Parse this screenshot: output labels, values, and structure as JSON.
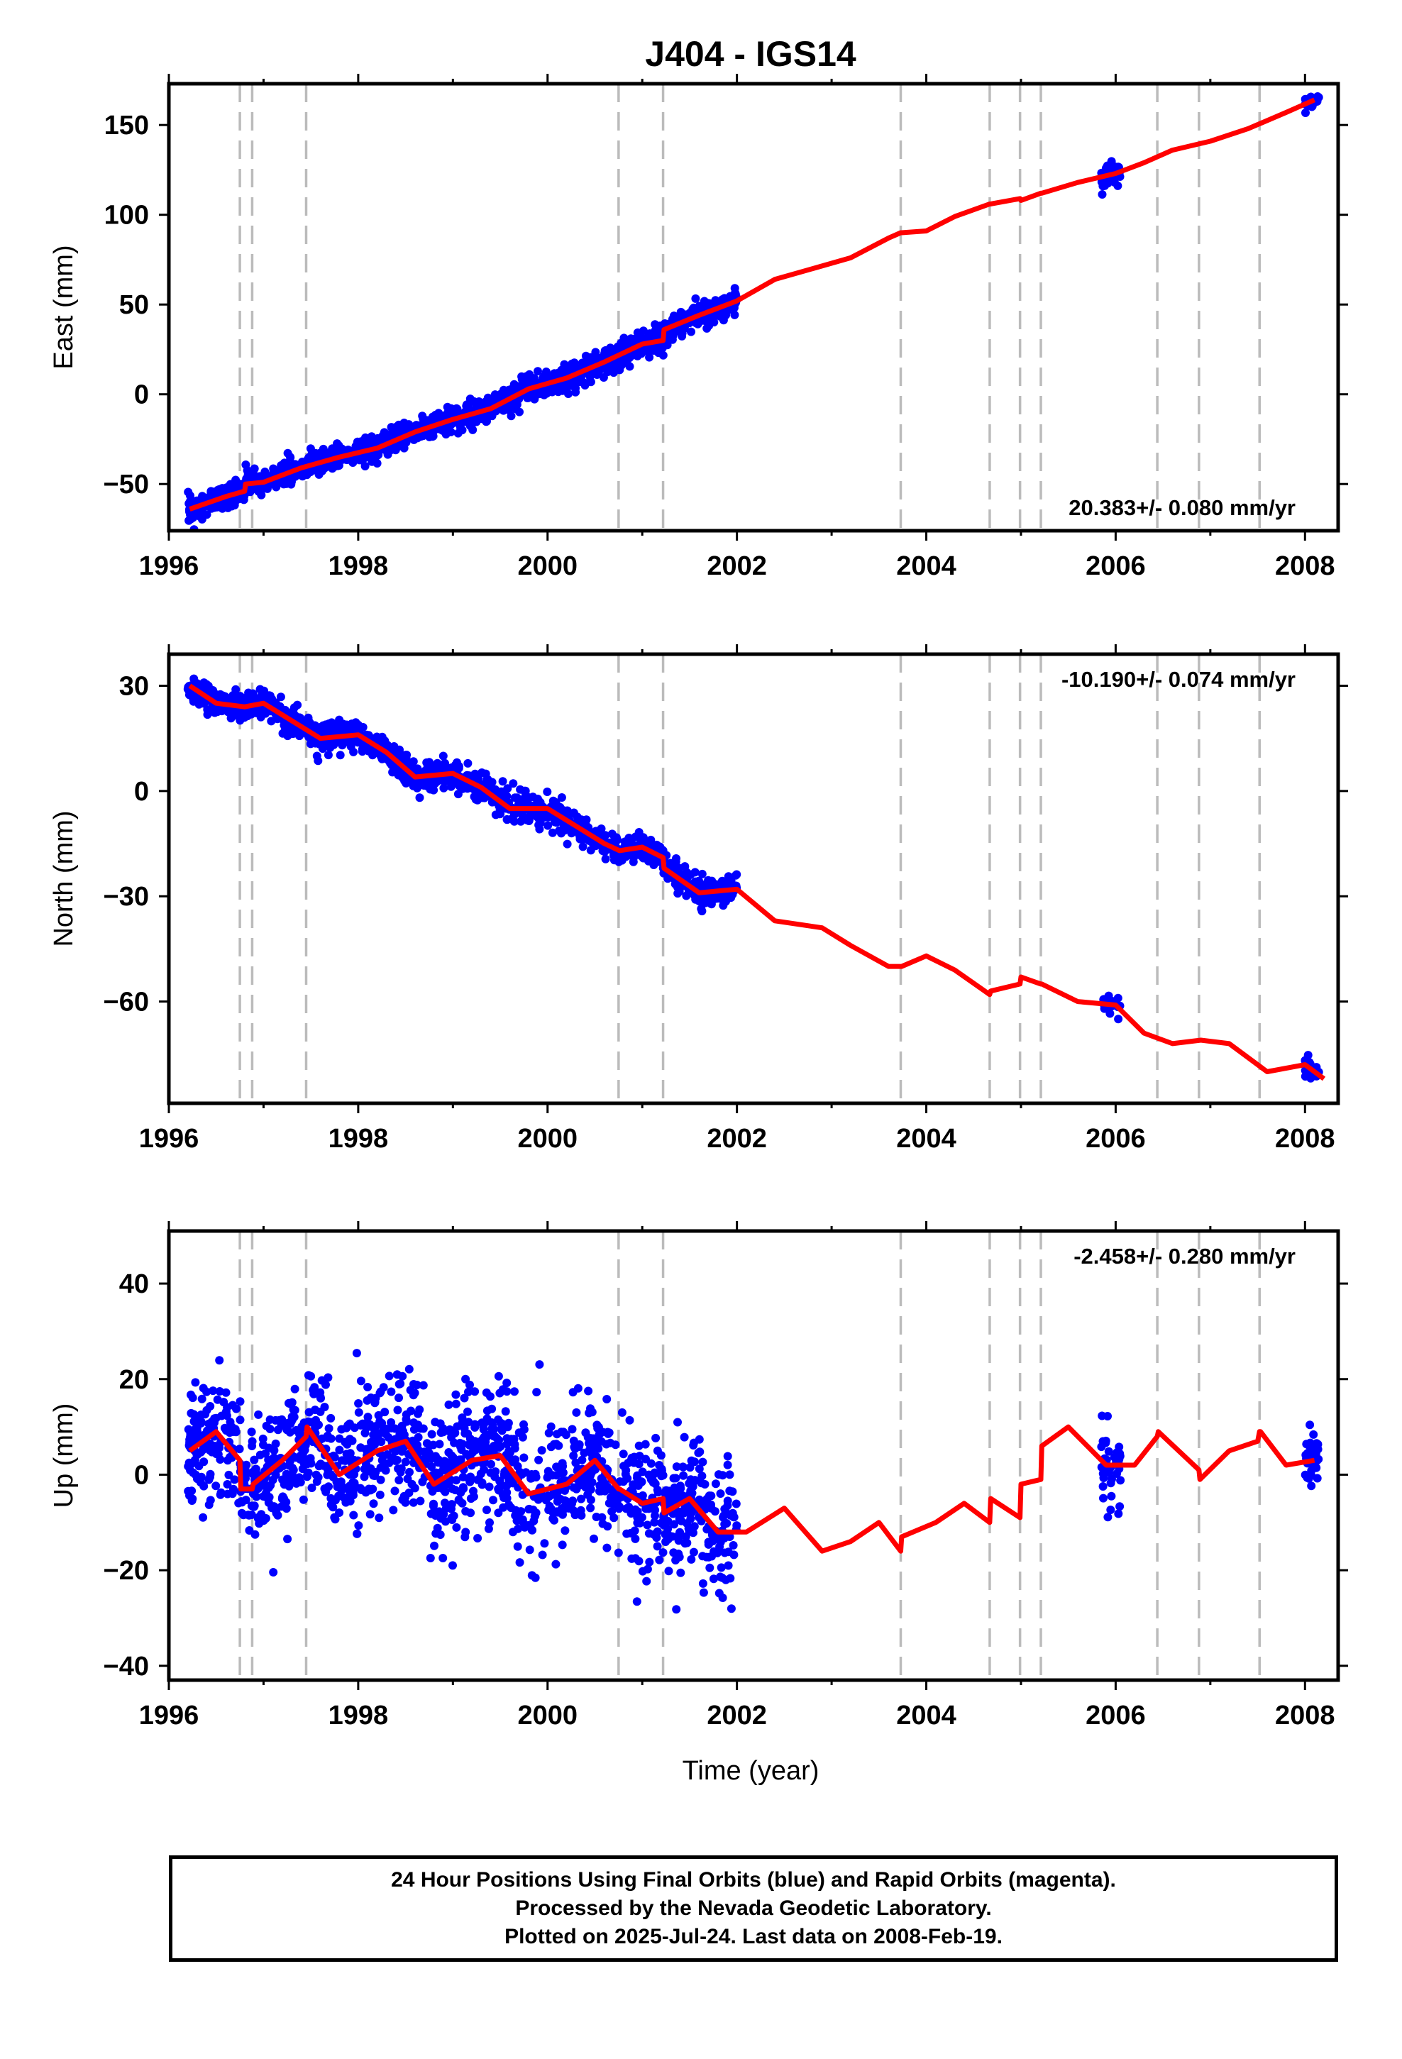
{
  "figure": {
    "title": "J404 - IGS14",
    "footer": [
      "24 Hour Positions Using Final Orbits (blue) and Rapid Orbits (magenta).",
      "Processed by the Nevada Geodetic Laboratory.",
      "Plotted on 2025-Jul-24. Last data on 2008-Feb-19."
    ],
    "xlabel": "Time (year)",
    "colors": {
      "data": "#0000ff",
      "model": "#ff0000",
      "breaks": "#bbbbbb",
      "frame": "#000000"
    }
  },
  "chart_data": [
    {
      "type": "scatter",
      "ylabel": "East (mm)",
      "rate_label": "20.383+/- 0.080 mm/yr",
      "rate_position": "bottom-right",
      "xlim": [
        1996.0,
        2008.35
      ],
      "ylim": [
        -76,
        173
      ],
      "x_ticks": [
        1996,
        1998,
        2000,
        2002,
        2004,
        2006,
        2008
      ],
      "y_ticks": [
        -50,
        0,
        50,
        100,
        150
      ],
      "y_tick_labels": [
        "−50",
        "0",
        "50",
        "100",
        "150"
      ],
      "break_lines": [
        1996.75,
        1996.88,
        1997.45,
        2000.75,
        2001.22,
        2003.73,
        2004.67,
        2004.99,
        2005.21,
        2006.44,
        2006.88,
        2007.52
      ],
      "model_line": {
        "x": [
          1996.22,
          1996.6,
          1996.8,
          1996.81,
          1997.0,
          1997.4,
          1997.8,
          1998.2,
          1998.6,
          1999.0,
          1999.4,
          1999.8,
          2000.2,
          2000.6,
          2000.76,
          2001.0,
          2001.22,
          2001.23,
          2001.6,
          2002.0,
          2002.4,
          2002.8,
          2003.2,
          2003.6,
          2003.73,
          2003.74,
          2004.0,
          2004.3,
          2004.67,
          2004.68,
          2004.99,
          2005.0,
          2005.21,
          2005.22,
          2005.6,
          2006.0,
          2006.3,
          2006.6,
          2007.0,
          2007.4,
          2007.8,
          2008.1
        ],
        "y": [
          -64,
          -57,
          -54,
          -50,
          -49,
          -41,
          -35,
          -30,
          -21,
          -14,
          -8,
          3,
          9,
          18,
          22,
          28,
          30,
          36,
          44,
          52,
          64,
          70,
          76,
          87,
          90,
          90,
          91,
          99,
          106,
          106,
          109,
          108,
          112,
          112,
          118,
          123,
          129,
          136,
          141,
          148,
          157,
          164
        ]
      },
      "scatter": [
        {
          "x0": 1996.2,
          "x1": 2002.0,
          "n": 1400,
          "noise": 3.5
        },
        {
          "x0": 2005.85,
          "x1": 2006.05,
          "n": 40,
          "noise": 3.5
        },
        {
          "x0": 2008.0,
          "x1": 2008.15,
          "n": 25,
          "noise": 1.5
        }
      ]
    },
    {
      "type": "scatter",
      "ylabel": "North (mm)",
      "rate_label": "-10.190+/- 0.074 mm/yr",
      "rate_position": "top-right",
      "xlim": [
        1996.0,
        2008.35
      ],
      "ylim": [
        -89,
        39
      ],
      "x_ticks": [
        1996,
        1998,
        2000,
        2002,
        2004,
        2006,
        2008
      ],
      "y_ticks": [
        -60,
        -30,
        0,
        30
      ],
      "y_tick_labels": [
        "−60",
        "−30",
        "0",
        "30"
      ],
      "break_lines": [
        1996.75,
        1996.88,
        1997.45,
        2000.75,
        2001.22,
        2003.73,
        2004.67,
        2004.99,
        2005.21,
        2006.44,
        2006.88,
        2007.52
      ],
      "model_line": {
        "x": [
          1996.22,
          1996.5,
          1996.8,
          1997.0,
          1997.3,
          1997.6,
          1998.0,
          1998.3,
          1998.6,
          1999.0,
          1999.3,
          1999.6,
          2000.0,
          2000.3,
          2000.6,
          2000.76,
          2001.0,
          2001.22,
          2001.23,
          2001.6,
          2002.0,
          2002.4,
          2002.9,
          2003.2,
          2003.6,
          2003.73,
          2003.74,
          2004.0,
          2004.3,
          2004.67,
          2004.68,
          2004.99,
          2005.0,
          2005.21,
          2005.22,
          2005.6,
          2006.0,
          2006.3,
          2006.6,
          2006.9,
          2007.2,
          2007.6,
          2008.0,
          2008.2
        ],
        "y": [
          30,
          25,
          24,
          25,
          20,
          15,
          16,
          11,
          4,
          5,
          1,
          -5,
          -5,
          -10,
          -15,
          -17,
          -16,
          -19,
          -22,
          -29,
          -28,
          -37,
          -39,
          -44,
          -50,
          -50,
          -50,
          -47,
          -51,
          -58,
          -57,
          -55,
          -53,
          -55,
          -55,
          -60,
          -61,
          -69,
          -72,
          -71,
          -72,
          -80,
          -78,
          -82
        ]
      },
      "scatter": [
        {
          "x0": 1996.2,
          "x1": 2002.0,
          "n": 1400,
          "noise": 2.0
        },
        {
          "x0": 2005.85,
          "x1": 2006.05,
          "n": 30,
          "noise": 1.5
        },
        {
          "x0": 2008.0,
          "x1": 2008.15,
          "n": 25,
          "noise": 1.5
        }
      ]
    },
    {
      "type": "scatter",
      "ylabel": "Up (mm)",
      "rate_label": "-2.458+/- 0.280 mm/yr",
      "rate_position": "top-right",
      "xlim": [
        1996.0,
        2008.35
      ],
      "ylim": [
        -43,
        51
      ],
      "x_ticks": [
        1996,
        1998,
        2000,
        2002,
        2004,
        2006,
        2008
      ],
      "y_ticks": [
        -40,
        -20,
        0,
        20,
        40
      ],
      "y_tick_labels": [
        "−40",
        "−20",
        "0",
        "20",
        "40"
      ],
      "break_lines": [
        1996.75,
        1996.88,
        1997.45,
        2000.75,
        2001.22,
        2003.73,
        2004.67,
        2004.99,
        2005.21,
        2006.44,
        2006.88,
        2007.52
      ],
      "model_line": {
        "x": [
          1996.22,
          1996.5,
          1996.75,
          1996.76,
          1996.88,
          1996.89,
          1997.2,
          1997.45,
          1997.46,
          1997.8,
          1998.2,
          1998.5,
          1998.8,
          1999.2,
          1999.5,
          1999.8,
          2000.2,
          2000.5,
          2000.75,
          2000.76,
          2001.0,
          2001.22,
          2001.23,
          2001.5,
          2001.8,
          2002.1,
          2002.5,
          2002.9,
          2003.2,
          2003.5,
          2003.73,
          2003.74,
          2004.1,
          2004.4,
          2004.67,
          2004.68,
          2004.99,
          2005.0,
          2005.21,
          2005.22,
          2005.5,
          2005.9,
          2006.2,
          2006.44,
          2006.45,
          2006.88,
          2006.89,
          2007.2,
          2007.5,
          2007.52,
          2007.53,
          2007.8,
          2008.1
        ],
        "y": [
          5,
          9,
          3,
          -3,
          -3,
          -2,
          3,
          8,
          10,
          0,
          5,
          7,
          -2,
          3,
          4,
          -4,
          -2,
          3,
          -3,
          -3,
          -6,
          -5,
          -8,
          -5,
          -12,
          -12,
          -7,
          -16,
          -14,
          -10,
          -16,
          -13,
          -10,
          -6,
          -10,
          -5,
          -9,
          -2,
          -1,
          6,
          10,
          2,
          2,
          8,
          9,
          1,
          -1,
          5,
          7,
          9,
          9,
          2,
          3
        ]
      },
      "scatter": [
        {
          "x0": 1996.2,
          "x1": 2002.0,
          "n": 1400,
          "noise": 7.0
        },
        {
          "x0": 2005.85,
          "x1": 2006.05,
          "n": 40,
          "noise": 4.0
        },
        {
          "x0": 2008.0,
          "x1": 2008.15,
          "n": 30,
          "noise": 3.0
        }
      ]
    }
  ]
}
